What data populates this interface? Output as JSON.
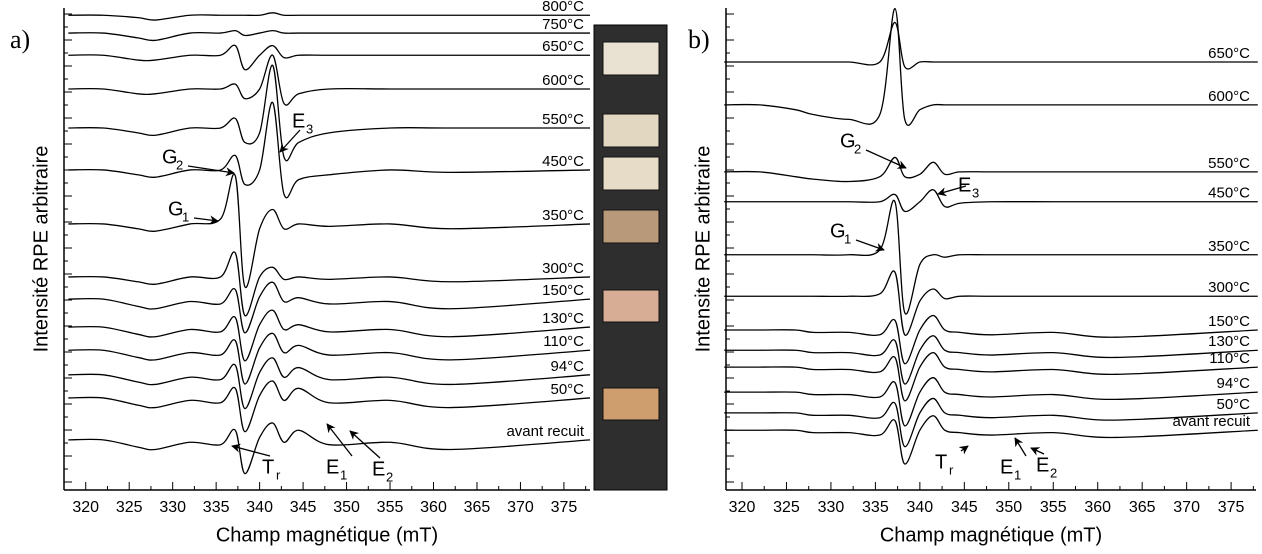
{
  "chart_data": [
    {
      "type": "line",
      "panel_label": "a)",
      "x_label": "Champ magnétique (mT)",
      "y_label": "Intensité RPE arbitraire",
      "xlim": [
        317.5,
        378
      ],
      "xticks": [
        320,
        325,
        330,
        335,
        340,
        345,
        350,
        355,
        360,
        365,
        370,
        375
      ],
      "ylim": [
        0,
        100
      ],
      "x": [
        318,
        322,
        326,
        328,
        332,
        335.5,
        337.2,
        338.3,
        340,
        341.5,
        342.8,
        344.5,
        348,
        355,
        362,
        378
      ],
      "series": [
        {
          "name": "800°C",
          "color": "#000000",
          "values": [
            98.5,
            98.5,
            98,
            97.5,
            98.5,
            98.5,
            98.5,
            98.5,
            98.5,
            99,
            98.5,
            98.5,
            98.5,
            98.5,
            98.5,
            98.5
          ]
        },
        {
          "name": "750°C",
          "color": "#000000",
          "values": [
            94.8,
            94.8,
            93.8,
            93.3,
            94.8,
            94.8,
            95.3,
            94.3,
            94.8,
            95.3,
            94.8,
            94.8,
            94.8,
            94.8,
            94.8,
            94.8
          ]
        },
        {
          "name": "650°C",
          "color": "#000000",
          "values": [
            90.2,
            90.2,
            89.2,
            89.2,
            90.2,
            90.2,
            92.2,
            87.2,
            90.2,
            92.2,
            89.7,
            90.2,
            90.2,
            90.2,
            90.2,
            90.2
          ]
        },
        {
          "name": "600°C",
          "color": "#000000",
          "values": [
            83.2,
            83.2,
            82.2,
            82.2,
            83.2,
            83.2,
            84.2,
            81.2,
            83.2,
            90.2,
            80.2,
            82.2,
            83.2,
            83.2,
            83.2,
            83.2
          ]
        },
        {
          "name": "550°C",
          "color": "#000000",
          "values": [
            75.1,
            75.1,
            74.1,
            73.6,
            75.1,
            75.1,
            77.1,
            72.1,
            74.1,
            88.1,
            69.1,
            72.1,
            74.1,
            75.1,
            75.1,
            75.1
          ]
        },
        {
          "name": "450°C",
          "color": "#000000",
          "values": [
            66.4,
            66.4,
            65.4,
            64.9,
            66.4,
            66.4,
            69.4,
            63.4,
            66.4,
            80.4,
            61.4,
            64.4,
            65.4,
            66.4,
            65.9,
            66.4
          ]
        },
        {
          "name": "350°C",
          "color": "#000000",
          "values": [
            55.2,
            55.2,
            54.2,
            53.7,
            55.2,
            56.2,
            65.2,
            42.2,
            54.2,
            58.2,
            54.2,
            55.2,
            54.7,
            55.2,
            54.2,
            55.2
          ]
        },
        {
          "name": "300°C",
          "color": "#000000",
          "values": [
            44.2,
            44.2,
            43.2,
            42.7,
            44.2,
            44.2,
            49.2,
            36.2,
            44.2,
            46.2,
            43.7,
            44.2,
            43.7,
            44.2,
            43.2,
            44.2
          ]
        },
        {
          "name": "150°C",
          "color": "#000000",
          "values": [
            39.6,
            39.6,
            38.1,
            37.6,
            39.1,
            38.6,
            41.6,
            32.6,
            40.1,
            43.1,
            39.1,
            39.9,
            38.6,
            39.1,
            37.6,
            39.6
          ]
        },
        {
          "name": "130°C",
          "color": "#000000",
          "values": [
            33.8,
            33.8,
            32.3,
            31.8,
            33.3,
            32.8,
            35.8,
            26.8,
            34.3,
            37.3,
            33.3,
            34.3,
            32.8,
            33.3,
            31.8,
            33.8
          ]
        },
        {
          "name": "110°C",
          "color": "#000000",
          "values": [
            29,
            29,
            27.5,
            27,
            28.5,
            28,
            31,
            22,
            29.5,
            32.5,
            28.5,
            30,
            28,
            28.5,
            27,
            29
          ]
        },
        {
          "name": "94°C",
          "color": "#000000",
          "values": [
            23.9,
            23.9,
            22.4,
            21.9,
            23.4,
            22.9,
            25.9,
            16.9,
            24.4,
            27.4,
            23.4,
            25.4,
            22.9,
            23.4,
            21.9,
            23.9
          ]
        },
        {
          "name": "50°C",
          "color": "#000000",
          "values": [
            19.1,
            19.1,
            17.6,
            17.1,
            18.6,
            18.1,
            21.1,
            12.1,
            19.6,
            22.6,
            18.6,
            21.1,
            18.1,
            18.6,
            17.1,
            19.1
          ]
        },
        {
          "name": "avant recuit",
          "color": "#000000",
          "values": [
            10.4,
            10.4,
            8.9,
            8.4,
            9.9,
            9.4,
            12.4,
            3.4,
            10.9,
            13.9,
            9.9,
            12.4,
            9.4,
            9.9,
            8.4,
            10.4
          ]
        }
      ],
      "annotations": [
        {
          "text": "G",
          "sub": "2"
        },
        {
          "text": "E",
          "sub": "3"
        },
        {
          "text": "G",
          "sub": "1"
        },
        {
          "text": "T",
          "sub": "r"
        },
        {
          "text": "E",
          "sub": "1"
        },
        {
          "text": "E",
          "sub": "2"
        }
      ]
    },
    {
      "type": "line",
      "panel_label": "b)",
      "x_label": "Champ magnétique (mT)",
      "y_label": "Intensite RPE arbitraire",
      "xlim": [
        318.2,
        377.8
      ],
      "xticks": [
        320,
        325,
        330,
        335,
        340,
        345,
        350,
        355,
        360,
        365,
        370,
        375
      ],
      "ylim": [
        0,
        100
      ],
      "x": [
        318,
        322,
        326,
        328,
        332,
        335.5,
        337.2,
        338.3,
        340,
        341.5,
        342.8,
        344.5,
        348,
        355,
        362,
        378
      ],
      "series": [
        {
          "name": "650°C",
          "color": "#000000",
          "values": [
            88.8,
            88.8,
            88.8,
            88.8,
            88.8,
            88.8,
            97,
            87.8,
            88.8,
            88.8,
            88.8,
            88.8,
            88.8,
            88.8,
            88.8,
            88.8
          ]
        },
        {
          "name": "600°C",
          "color": "#000000",
          "values": [
            79.9,
            79.9,
            78.9,
            77.9,
            76.9,
            77.9,
            99.9,
            76.9,
            78.9,
            79.9,
            79.9,
            79.9,
            79.9,
            79.9,
            79.9,
            79.9
          ]
        },
        {
          "name": "550°C",
          "color": "#000000",
          "values": [
            66,
            66,
            65,
            64.5,
            64,
            65,
            69,
            65,
            65.5,
            68,
            65.5,
            66,
            66,
            66,
            66,
            66
          ]
        },
        {
          "name": "450°C",
          "color": "#000000",
          "values": [
            59.8,
            59.8,
            59.8,
            59.8,
            59.8,
            59.8,
            61.3,
            57.8,
            59.8,
            62.3,
            58.8,
            59.5,
            59.8,
            59.8,
            59.8,
            59.8
          ]
        },
        {
          "name": "350°C",
          "color": "#000000",
          "values": [
            48.8,
            48.8,
            48.8,
            48.8,
            48.8,
            49.8,
            59.8,
            36.8,
            46.8,
            48.8,
            48.3,
            48.8,
            48.8,
            48.8,
            48.8,
            48.8
          ]
        },
        {
          "name": "300°C",
          "color": "#000000",
          "values": [
            40.2,
            40.2,
            40.2,
            40.2,
            40.2,
            40.7,
            45.2,
            32.2,
            39.2,
            41.7,
            39.7,
            40.2,
            40.2,
            40.2,
            40.2,
            40.2
          ]
        },
        {
          "name": "150°C",
          "color": "#000000",
          "values": [
            33.2,
            33.2,
            33.2,
            32.7,
            32.7,
            32.2,
            35.2,
            26.2,
            33.2,
            36.2,
            33.2,
            32.7,
            32.2,
            32.7,
            31.7,
            33.2
          ]
        },
        {
          "name": "130°C",
          "color": "#000000",
          "values": [
            29,
            29,
            29,
            28.5,
            28.5,
            28,
            31,
            22,
            29,
            32,
            29,
            28.5,
            28,
            28.5,
            27.5,
            29
          ]
        },
        {
          "name": "110°C",
          "color": "#000000",
          "values": [
            25.5,
            25.5,
            25.5,
            25,
            25,
            24.5,
            27.5,
            18.5,
            25.5,
            28.5,
            25.5,
            25,
            24.5,
            25,
            24,
            25.5
          ]
        },
        {
          "name": "94°C",
          "color": "#000000",
          "values": [
            20.3,
            20.3,
            20.3,
            19.8,
            19.8,
            19.3,
            22.3,
            13.3,
            20.3,
            23.3,
            20.3,
            19.8,
            19.3,
            19.8,
            18.8,
            20.3
          ]
        },
        {
          "name": "50°C",
          "color": "#000000",
          "values": [
            16,
            16,
            16,
            15.5,
            15.5,
            15,
            18,
            9,
            16,
            19,
            16,
            15.5,
            15,
            15.5,
            14.5,
            16
          ]
        },
        {
          "name": "avant recuit",
          "color": "#000000",
          "values": [
            12.4,
            12.4,
            12.4,
            11.9,
            11.9,
            11.4,
            14.4,
            5.4,
            12.4,
            15.4,
            12.4,
            11.9,
            11.4,
            11.9,
            10.9,
            12.4
          ]
        }
      ],
      "annotations": [
        {
          "text": "G",
          "sub": "2"
        },
        {
          "text": "E",
          "sub": "3"
        },
        {
          "text": "G",
          "sub": "1"
        },
        {
          "text": "T",
          "sub": "r"
        },
        {
          "text": "E",
          "sub": "1"
        },
        {
          "text": "E",
          "sub": "2"
        }
      ]
    }
  ]
}
